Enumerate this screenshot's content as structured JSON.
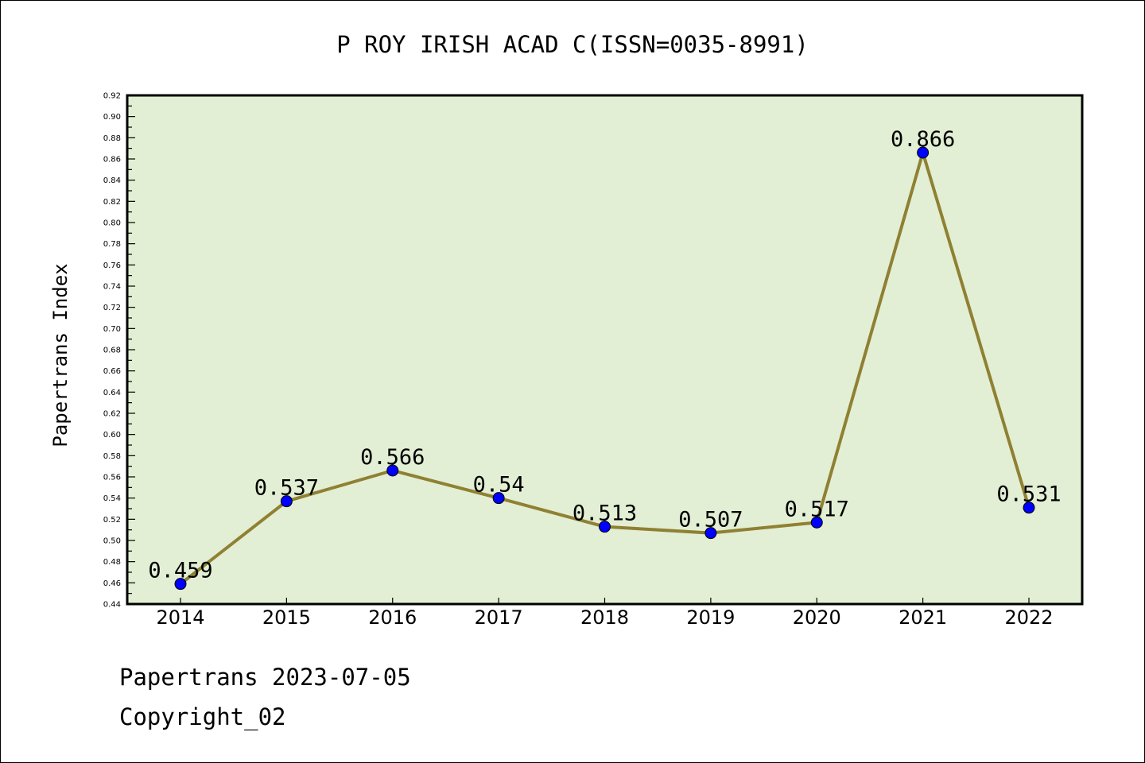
{
  "chart_data": {
    "type": "line",
    "title": "P ROY IRISH ACAD C(ISSN=0035-8991)",
    "xlabel": "",
    "ylabel": "Papertrans Index",
    "categories": [
      "2014",
      "2015",
      "2016",
      "2017",
      "2018",
      "2019",
      "2020",
      "2021",
      "2022"
    ],
    "values": [
      0.459,
      0.537,
      0.566,
      0.54,
      0.513,
      0.507,
      0.517,
      0.866,
      0.531
    ],
    "value_labels": [
      "0.459",
      "0.537",
      "0.566",
      "0.54",
      "0.513",
      "0.507",
      "0.517",
      "0.866",
      "0.531"
    ],
    "ylim": [
      0.44,
      0.92
    ],
    "y_major_step": 0.02,
    "y_minor_step": 0.01,
    "grid": false,
    "colors": {
      "plot_bg": "#e2efd4",
      "line": "#8f8033",
      "marker": "#0000ff",
      "axis": "#000000"
    }
  },
  "footer": {
    "line1": "Papertrans 2023-07-05",
    "line2": "Copyright_02"
  }
}
